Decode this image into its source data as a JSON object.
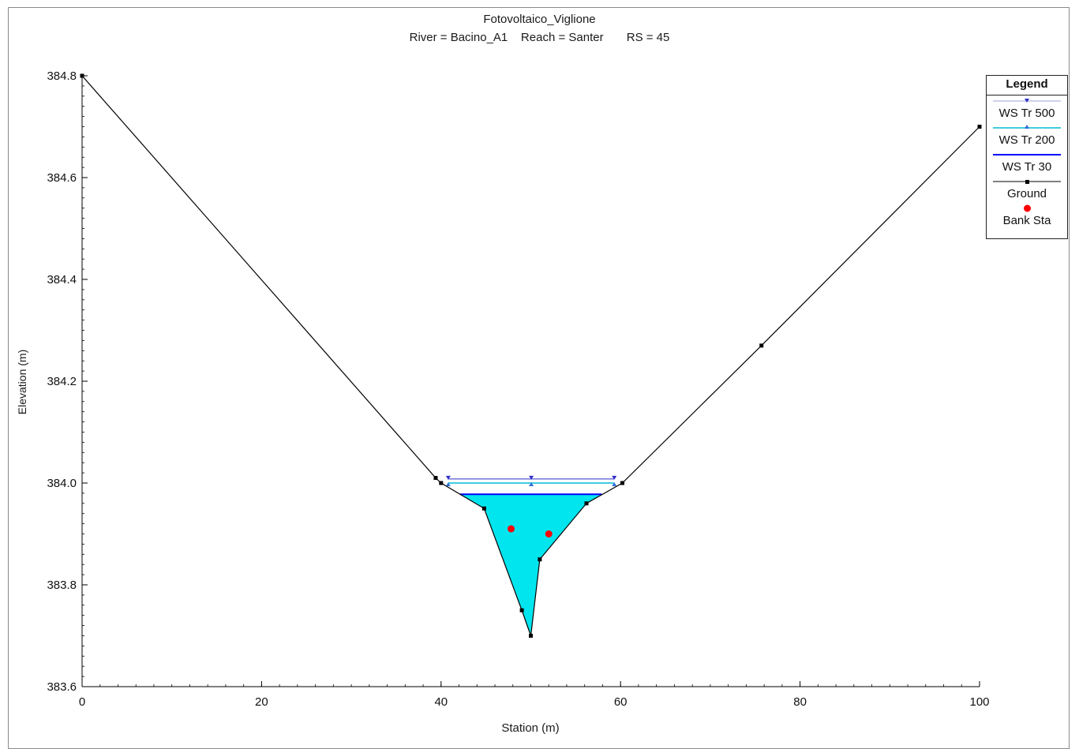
{
  "chart_data": {
    "type": "line",
    "title": "Fotovoltaico_Viglione",
    "subtitle": "River = Bacino_A1    Reach = Santer       RS = 45",
    "xlabel": "Station (m)",
    "ylabel": "Elevation (m)",
    "xlim": [
      0,
      100
    ],
    "ylim": [
      383.6,
      384.8
    ],
    "x_ticks": [
      0,
      20,
      40,
      60,
      80,
      100
    ],
    "x_tick_labels": [
      "0",
      "20",
      "40",
      "60",
      "80",
      "100"
    ],
    "y_ticks": [
      383.6,
      383.8,
      384.0,
      384.2,
      384.4,
      384.6,
      384.8
    ],
    "y_tick_labels": [
      "383.6",
      "383.8",
      "384.0",
      "384.2",
      "384.4",
      "384.6",
      "384.8"
    ],
    "grid": false,
    "legend_position": "top-right",
    "legend_title": "Legend",
    "ground": {
      "name": "Ground",
      "color": "#000000",
      "x": [
        0,
        39.4,
        40.0,
        44.8,
        49.0,
        50.0,
        51.0,
        56.2,
        60.2,
        75.7,
        100
      ],
      "y": [
        384.8,
        384.01,
        384.0,
        383.95,
        383.75,
        383.7,
        383.85,
        383.96,
        384.0,
        384.27,
        384.7
      ]
    },
    "bank_stations": {
      "name": "Bank Sta",
      "color": "#ff0000",
      "x": [
        47.8,
        52.0
      ],
      "y": [
        383.91,
        383.9
      ]
    },
    "water_surfaces": [
      {
        "name": "WS Tr 500",
        "color": "#2f2fc8",
        "elevation": 384.008,
        "x_left": 40.8,
        "x_right": 59.3,
        "marker": "triangle-down"
      },
      {
        "name": "WS Tr 200",
        "color": "#00bcd4",
        "elevation": 384.0,
        "x_left": 40.8,
        "x_right": 59.3,
        "marker": "triangle-up"
      },
      {
        "name": "WS Tr 30",
        "color": "#0000ff",
        "elevation": 383.978,
        "x_left": 42.1,
        "x_right": 57.9,
        "marker": "none"
      }
    ],
    "water_fill_color": "#00e5ee"
  }
}
